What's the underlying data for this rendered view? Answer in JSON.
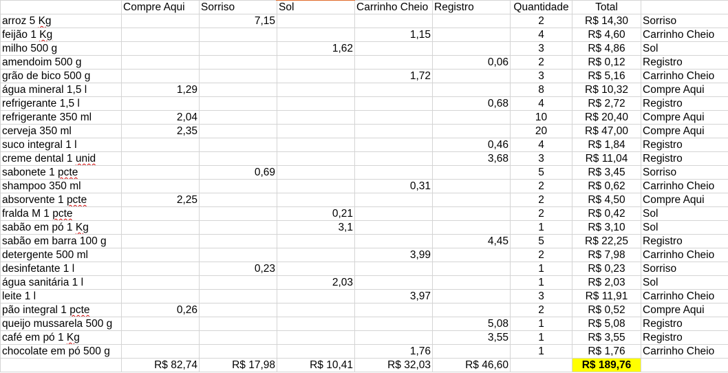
{
  "headers": [
    "",
    "Compre Aqui",
    "Sorriso",
    "Sol",
    "Carrinho Cheio",
    "Registro",
    "Quantidade",
    "Total",
    ""
  ],
  "rows": [
    {
      "item": "arroz 5 Kg",
      "prices": [
        "",
        "7,15",
        "",
        "",
        ""
      ],
      "qty": "2",
      "total": "R$ 14,30",
      "store": "Sorriso"
    },
    {
      "item": "feijão 1 Kg",
      "prices": [
        "",
        "",
        "",
        "1,15",
        ""
      ],
      "qty": "4",
      "total": "R$ 4,60",
      "store": "Carrinho Cheio"
    },
    {
      "item": "milho 500 g",
      "prices": [
        "",
        "",
        "1,62",
        "",
        ""
      ],
      "qty": "3",
      "total": "R$ 4,86",
      "store": "Sol"
    },
    {
      "item": "amendoim 500 g",
      "prices": [
        "",
        "",
        "",
        "",
        "0,06"
      ],
      "qty": "2",
      "total": "R$ 0,12",
      "store": "Registro"
    },
    {
      "item": "grão de bico 500 g",
      "prices": [
        "",
        "",
        "",
        "1,72",
        ""
      ],
      "qty": "3",
      "total": "R$ 5,16",
      "store": "Carrinho Cheio"
    },
    {
      "item": "água mineral 1,5 l",
      "prices": [
        "1,29",
        "",
        "",
        "",
        ""
      ],
      "qty": "8",
      "total": "R$ 10,32",
      "store": "Compre Aqui"
    },
    {
      "item": "refrigerante 1,5 l",
      "prices": [
        "",
        "",
        "",
        "",
        "0,68"
      ],
      "qty": "4",
      "total": "R$ 2,72",
      "store": "Registro"
    },
    {
      "item": "refrigerante 350 ml",
      "prices": [
        "2,04",
        "",
        "",
        "",
        ""
      ],
      "qty": "10",
      "total": "R$ 20,40",
      "store": "Compre Aqui"
    },
    {
      "item": "cerveja 350 ml",
      "prices": [
        "2,35",
        "",
        "",
        "",
        ""
      ],
      "qty": "20",
      "total": "R$ 47,00",
      "store": "Compre Aqui"
    },
    {
      "item": "suco integral 1 l",
      "prices": [
        "",
        "",
        "",
        "",
        "0,46"
      ],
      "qty": "4",
      "total": "R$ 1,84",
      "store": "Registro"
    },
    {
      "item": "creme dental 1 unid",
      "prices": [
        "",
        "",
        "",
        "",
        "3,68"
      ],
      "qty": "3",
      "total": "R$ 11,04",
      "store": "Registro"
    },
    {
      "item": "sabonete 1 pcte",
      "prices": [
        "",
        "0,69",
        "",
        "",
        ""
      ],
      "qty": "5",
      "total": "R$ 3,45",
      "store": "Sorriso"
    },
    {
      "item": "shampoo 350 ml",
      "prices": [
        "",
        "",
        "",
        "0,31",
        ""
      ],
      "qty": "2",
      "total": "R$ 0,62",
      "store": "Carrinho Cheio"
    },
    {
      "item": "absorvente 1 pcte",
      "prices": [
        "2,25",
        "",
        "",
        "",
        ""
      ],
      "qty": "2",
      "total": "R$ 4,50",
      "store": "Compre Aqui"
    },
    {
      "item": "fralda M 1 pcte",
      "prices": [
        "",
        "",
        "0,21",
        "",
        ""
      ],
      "qty": "2",
      "total": "R$ 0,42",
      "store": "Sol"
    },
    {
      "item": "sabão em pó 1 Kg",
      "prices": [
        "",
        "",
        "3,1",
        "",
        ""
      ],
      "qty": "1",
      "total": "R$ 3,10",
      "store": "Sol"
    },
    {
      "item": "sabão em barra 100 g",
      "prices": [
        "",
        "",
        "",
        "",
        "4,45"
      ],
      "qty": "5",
      "total": "R$ 22,25",
      "store": "Registro"
    },
    {
      "item": "detergente 500 ml",
      "prices": [
        "",
        "",
        "",
        "3,99",
        ""
      ],
      "qty": "2",
      "total": "R$ 7,98",
      "store": "Carrinho Cheio"
    },
    {
      "item": "desinfetante 1 l",
      "prices": [
        "",
        "0,23",
        "",
        "",
        ""
      ],
      "qty": "1",
      "total": "R$ 0,23",
      "store": "Sorriso"
    },
    {
      "item": "água sanitária 1 l",
      "prices": [
        "",
        "",
        "2,03",
        "",
        ""
      ],
      "qty": "1",
      "total": "R$ 2,03",
      "store": "Sol"
    },
    {
      "item": "leite 1 l",
      "prices": [
        "",
        "",
        "",
        "3,97",
        ""
      ],
      "qty": "3",
      "total": "R$ 11,91",
      "store": "Carrinho Cheio"
    },
    {
      "item": "pão integral 1 pcte",
      "prices": [
        "0,26",
        "",
        "",
        "",
        ""
      ],
      "qty": "2",
      "total": "R$ 0,52",
      "store": "Compre Aqui"
    },
    {
      "item": "queijo mussarela 500 g",
      "prices": [
        "",
        "",
        "",
        "",
        "5,08"
      ],
      "qty": "1",
      "total": "R$ 5,08",
      "store": "Registro"
    },
    {
      "item": "café em pó 1 Kg",
      "prices": [
        "",
        "",
        "",
        "",
        "3,55"
      ],
      "qty": "1",
      "total": "R$ 3,55",
      "store": "Registro"
    },
    {
      "item": "chocolate em pó 500 g",
      "prices": [
        "",
        "",
        "",
        "1,76",
        ""
      ],
      "qty": "1",
      "total": "R$ 1,76",
      "store": "Carrinho Cheio"
    }
  ],
  "footer": {
    "store_totals": [
      "R$ 82,74",
      "R$ 17,98",
      "R$ 10,41",
      "R$ 32,03",
      "R$ 46,60"
    ],
    "grand_total": "R$ 189,76"
  },
  "spellcheck_words": {
    "0": "Kg",
    "1": "Kg",
    "10": "unid",
    "11": "pcte",
    "13": "pcte",
    "14": "pcte",
    "15": "Kg",
    "21": "pcte",
    "23": "Kg"
  },
  "colors": {
    "grand_total_highlight": "#ffff00",
    "gridline": "#d4d4d4",
    "spellcheck": "#d00000"
  }
}
